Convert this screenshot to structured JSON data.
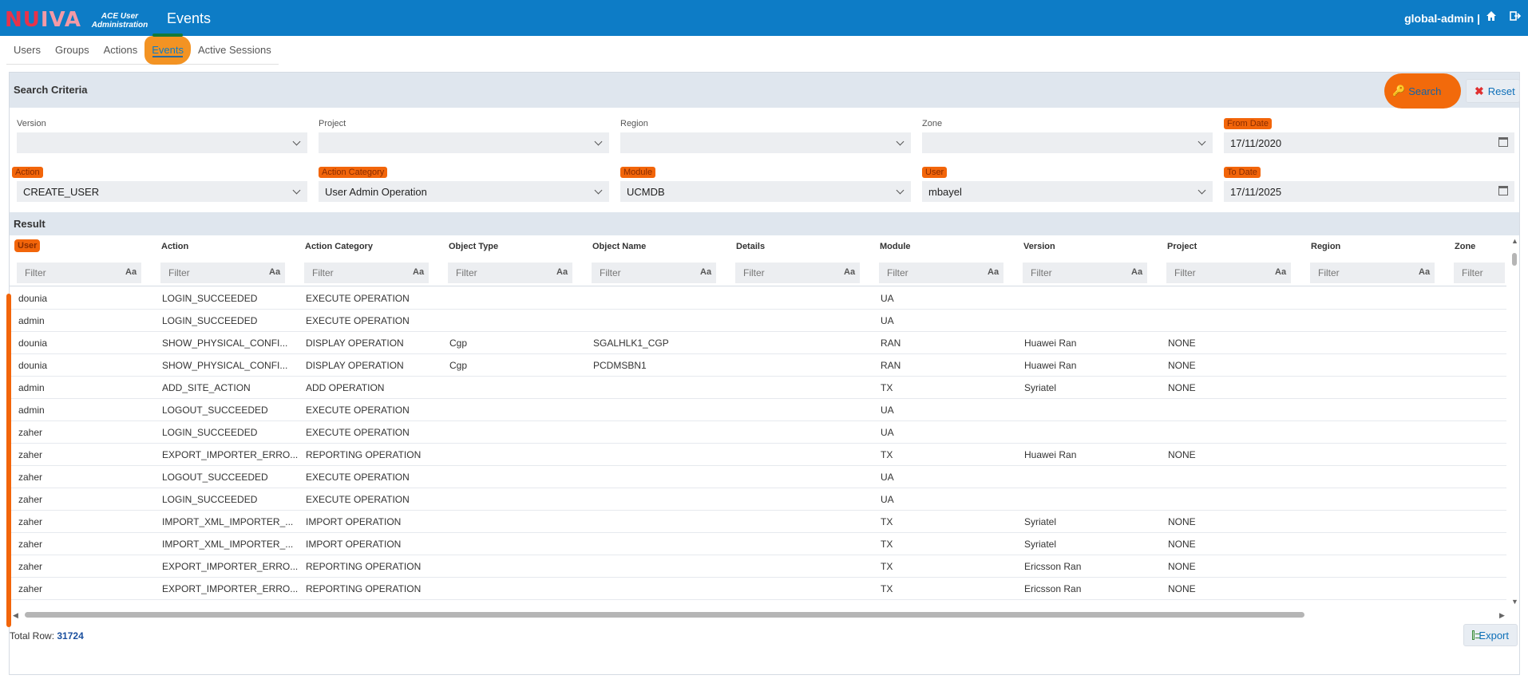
{
  "app": {
    "logo_part1": "NU",
    "logo_part2": "IVA",
    "subtitle_line1": "ACE User",
    "subtitle_line2": "Administration",
    "page_title": "Events",
    "user": "global-admin |",
    "home_icon": "home-icon",
    "logout_icon": "logout-icon"
  },
  "tabs": [
    {
      "label": "Users"
    },
    {
      "label": "Groups"
    },
    {
      "label": "Actions"
    },
    {
      "label": "Events",
      "active": true
    },
    {
      "label": "Active Sessions"
    }
  ],
  "criteria": {
    "title": "Search Criteria",
    "search_label": "Search",
    "reset_label": "Reset",
    "fields": {
      "version": {
        "label": "Version",
        "value": ""
      },
      "project": {
        "label": "Project",
        "value": ""
      },
      "region": {
        "label": "Region",
        "value": ""
      },
      "zone": {
        "label": "Zone",
        "value": ""
      },
      "from_date": {
        "label": "From Date",
        "value": "17/11/2020"
      },
      "action": {
        "label": "Action",
        "value": "CREATE_USER"
      },
      "action_category": {
        "label": "Action Category",
        "value": "User Admin Operation"
      },
      "module": {
        "label": "Module",
        "value": "UCMDB"
      },
      "user": {
        "label": "User",
        "value": "mbayel"
      },
      "to_date": {
        "label": "To Date",
        "value": "17/11/2025"
      }
    }
  },
  "result": {
    "title": "Result",
    "columns": [
      "User",
      "Action",
      "Action Category",
      "Object Type",
      "Object Name",
      "Details",
      "Module",
      "Version",
      "Project",
      "Region",
      "Zone"
    ],
    "filter_placeholder": "Filter",
    "case_toggle": "Aa",
    "rows": [
      [
        "dounia",
        "LOGIN_SUCCEEDED",
        "EXECUTE OPERATION",
        "",
        "",
        "",
        "UA",
        "",
        "",
        "",
        ""
      ],
      [
        "admin",
        "LOGIN_SUCCEEDED",
        "EXECUTE OPERATION",
        "",
        "",
        "",
        "UA",
        "",
        "",
        "",
        ""
      ],
      [
        "dounia",
        "SHOW_PHYSICAL_CONFI...",
        "DISPLAY OPERATION",
        "Cgp",
        "SGALHLK1_CGP",
        "",
        "RAN",
        "Huawei Ran",
        "NONE",
        "",
        ""
      ],
      [
        "dounia",
        "SHOW_PHYSICAL_CONFI...",
        "DISPLAY OPERATION",
        "Cgp",
        "PCDMSBN1",
        "",
        "RAN",
        "Huawei Ran",
        "NONE",
        "",
        ""
      ],
      [
        "admin",
        "ADD_SITE_ACTION",
        "ADD OPERATION",
        "",
        "",
        "",
        "TX",
        "Syriatel",
        "NONE",
        "",
        ""
      ],
      [
        "admin",
        "LOGOUT_SUCCEEDED",
        "EXECUTE OPERATION",
        "",
        "",
        "",
        "UA",
        "",
        "",
        "",
        ""
      ],
      [
        "zaher",
        "LOGIN_SUCCEEDED",
        "EXECUTE OPERATION",
        "",
        "",
        "",
        "UA",
        "",
        "",
        "",
        ""
      ],
      [
        "zaher",
        "EXPORT_IMPORTER_ERRO...",
        "REPORTING OPERATION",
        "",
        "",
        "",
        "TX",
        "Huawei Ran",
        "NONE",
        "",
        ""
      ],
      [
        "zaher",
        "LOGOUT_SUCCEEDED",
        "EXECUTE OPERATION",
        "",
        "",
        "",
        "UA",
        "",
        "",
        "",
        ""
      ],
      [
        "zaher",
        "LOGIN_SUCCEEDED",
        "EXECUTE OPERATION",
        "",
        "",
        "",
        "UA",
        "",
        "",
        "",
        ""
      ],
      [
        "zaher",
        "IMPORT_XML_IMPORTER_...",
        "IMPORT OPERATION",
        "",
        "",
        "",
        "TX",
        "Syriatel",
        "NONE",
        "",
        ""
      ],
      [
        "zaher",
        "IMPORT_XML_IMPORTER_...",
        "IMPORT OPERATION",
        "",
        "",
        "",
        "TX",
        "Syriatel",
        "NONE",
        "",
        ""
      ],
      [
        "zaher",
        "EXPORT_IMPORTER_ERRO...",
        "REPORTING OPERATION",
        "",
        "",
        "",
        "TX",
        "Ericsson Ran",
        "NONE",
        "",
        ""
      ],
      [
        "zaher",
        "EXPORT_IMPORTER_ERRO...",
        "REPORTING OPERATION",
        "",
        "",
        "",
        "TX",
        "Ericsson Ran",
        "NONE",
        "",
        ""
      ]
    ],
    "total_label": "Total Row:",
    "total_value": "31724",
    "export_label": "Export"
  },
  "colors": {
    "header_blue": "#0d7cc6",
    "highlight_orange": "#f2650a",
    "section_bg": "#dfe6ee"
  }
}
